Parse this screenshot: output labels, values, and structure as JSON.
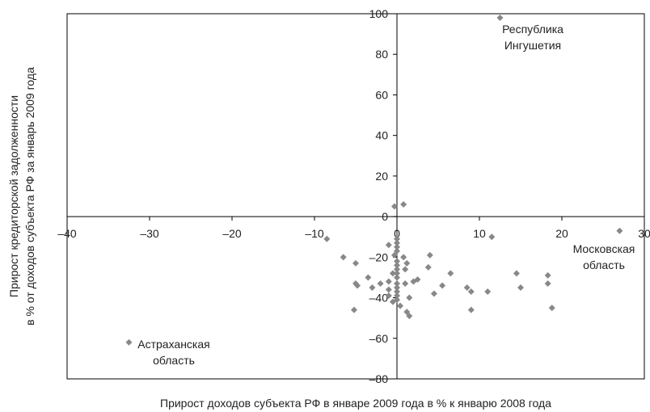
{
  "chart_data": {
    "type": "scatter",
    "xlabel": "Прирост доходов субъекта РФ в январе 2009 года в % к январю 2008 года",
    "ylabel": [
      "Прирост кредиторской задолженности",
      "в % от доходов субъекта РФ за январь 2009 года"
    ],
    "xlim": [
      -40,
      30
    ],
    "ylim": [
      -80,
      100
    ],
    "x_ticks": [
      -40,
      -30,
      -20,
      -10,
      0,
      10,
      20,
      30
    ],
    "y_ticks": [
      -80,
      -60,
      -40,
      -20,
      0,
      20,
      40,
      60,
      80,
      100
    ],
    "x_tick_labels": [
      "–40",
      "–30",
      "–20",
      "–10",
      "0",
      "10",
      "20",
      "30"
    ],
    "y_tick_labels": [
      "–80",
      "–60",
      "–40",
      "–20",
      "0",
      "20",
      "40",
      "60",
      "80",
      "100"
    ],
    "grid": false,
    "marker_color": "#888888",
    "points": [
      {
        "x": 12.5,
        "y": 98
      },
      {
        "x": 27,
        "y": -7
      },
      {
        "x": -32.5,
        "y": -62
      },
      {
        "x": -8.5,
        "y": -11
      },
      {
        "x": -6.5,
        "y": -20
      },
      {
        "x": -5,
        "y": -23
      },
      {
        "x": -5,
        "y": -33
      },
      {
        "x": -4.8,
        "y": -34
      },
      {
        "x": -5.2,
        "y": -46
      },
      {
        "x": -3.5,
        "y": -30
      },
      {
        "x": -3,
        "y": -35
      },
      {
        "x": -2,
        "y": -33
      },
      {
        "x": -1,
        "y": -14
      },
      {
        "x": -1,
        "y": -32
      },
      {
        "x": -1,
        "y": -36
      },
      {
        "x": -1,
        "y": -39
      },
      {
        "x": -0.5,
        "y": -28
      },
      {
        "x": -0.3,
        "y": -19
      },
      {
        "x": -0.5,
        "y": -42
      },
      {
        "x": -0.3,
        "y": 5
      },
      {
        "x": 0.8,
        "y": 6
      },
      {
        "x": 0,
        "y": -11
      },
      {
        "x": 0,
        "y": -13
      },
      {
        "x": 0,
        "y": -15
      },
      {
        "x": 0,
        "y": -17
      },
      {
        "x": 0,
        "y": -22
      },
      {
        "x": 0,
        "y": -24
      },
      {
        "x": 0,
        "y": -26
      },
      {
        "x": 0,
        "y": -28
      },
      {
        "x": 0,
        "y": -30
      },
      {
        "x": 0,
        "y": -33
      },
      {
        "x": 0,
        "y": -35
      },
      {
        "x": 0,
        "y": -37
      },
      {
        "x": 0,
        "y": -39
      },
      {
        "x": 0,
        "y": -41
      },
      {
        "x": 0.4,
        "y": -44
      },
      {
        "x": 0.8,
        "y": -20
      },
      {
        "x": 1,
        "y": -33
      },
      {
        "x": 1.2,
        "y": -23
      },
      {
        "x": 1,
        "y": -26
      },
      {
        "x": 1.2,
        "y": -47
      },
      {
        "x": 1.5,
        "y": -49
      },
      {
        "x": 1.5,
        "y": -40
      },
      {
        "x": 2,
        "y": -32
      },
      {
        "x": 2.5,
        "y": -31
      },
      {
        "x": 3.8,
        "y": -25
      },
      {
        "x": 4,
        "y": -19
      },
      {
        "x": 4.5,
        "y": -38
      },
      {
        "x": 5.5,
        "y": -34
      },
      {
        "x": 6.5,
        "y": -28
      },
      {
        "x": 8.5,
        "y": -35
      },
      {
        "x": 9,
        "y": -37
      },
      {
        "x": 9,
        "y": -46
      },
      {
        "x": 11,
        "y": -37
      },
      {
        "x": 11.5,
        "y": -10
      },
      {
        "x": 14.5,
        "y": -28
      },
      {
        "x": 15,
        "y": -35
      },
      {
        "x": 18.3,
        "y": -29
      },
      {
        "x": 18.3,
        "y": -33
      },
      {
        "x": 18.8,
        "y": -45
      }
    ],
    "annotations": [
      {
        "lines": [
          "Республика",
          "Ингушетия"
        ]
      },
      {
        "lines": [
          "Московская",
          "область"
        ]
      },
      {
        "lines": [
          "Астраханская",
          "область"
        ]
      }
    ]
  }
}
